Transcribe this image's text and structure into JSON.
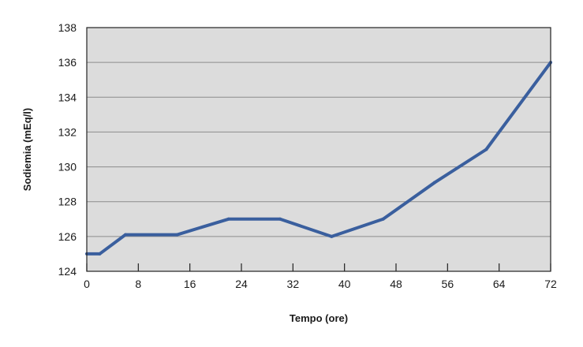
{
  "chart_data": {
    "type": "line",
    "title": "",
    "xlabel": "Tempo (ore)",
    "ylabel": "Sodiemia (mEq/l)",
    "xlim": [
      0,
      72
    ],
    "ylim": [
      124,
      138
    ],
    "x_ticks": [
      0,
      8,
      16,
      24,
      32,
      40,
      48,
      56,
      64,
      72
    ],
    "y_ticks": [
      124,
      126,
      128,
      130,
      132,
      134,
      136,
      138
    ],
    "grid": "horizontal",
    "legend": "none",
    "series": [
      {
        "x": [
          0,
          2,
          6,
          14,
          22,
          30,
          38,
          46,
          54,
          62,
          72
        ],
        "y": [
          125,
          125,
          126.1,
          126.1,
          127,
          127,
          126,
          127,
          129.1,
          131,
          136
        ]
      }
    ]
  },
  "colors": {
    "plot_background": "#dcdcdc",
    "line": "#3a5f9e",
    "grid": "#8c8c8c",
    "frame": "#222222"
  }
}
